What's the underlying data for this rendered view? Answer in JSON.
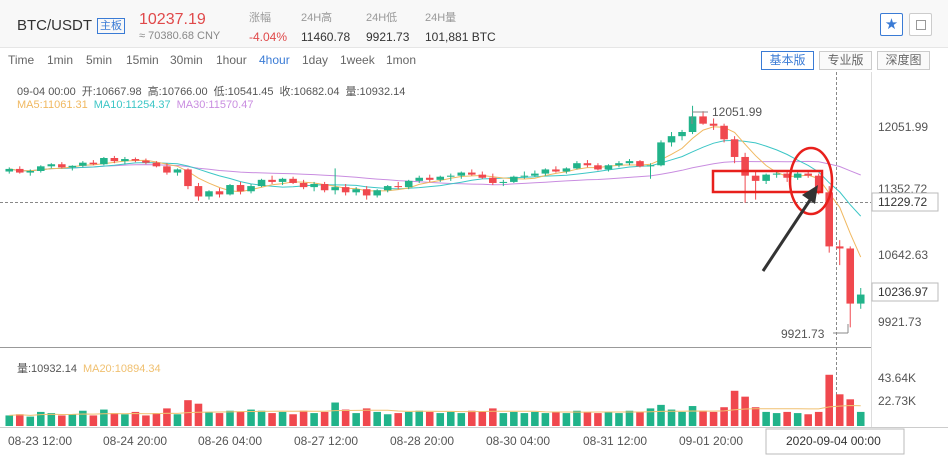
{
  "header": {
    "pair": "BTC/USDT",
    "badge": "主板",
    "price": "10237.19",
    "cny": "≈ 70380.68 CNY",
    "stats": [
      {
        "label": "涨幅",
        "value": "-4.04%",
        "red": true
      },
      {
        "label": "24H高",
        "value": "11460.78",
        "red": false
      },
      {
        "label": "24H低",
        "value": "9921.73",
        "red": false
      },
      {
        "label": "24H量",
        "value": "101,881 BTC",
        "red": false
      }
    ]
  },
  "intervals": [
    "Time",
    "1min",
    "5min",
    "15min",
    "30min",
    "1hour",
    "4hour",
    "1day",
    "1week",
    "1mon"
  ],
  "active_interval": "4hour",
  "modes": [
    {
      "label": "基本版",
      "active": true
    },
    {
      "label": "专业版",
      "active": false
    },
    {
      "label": "深度图",
      "active": false
    }
  ],
  "ohlc_info": {
    "date": "09-04 00:00",
    "open": "开:10667.98",
    "high": "高:10766.00",
    "low": "低:10541.45",
    "close": "收:10682.04",
    "volume": "量:10932.14"
  },
  "ma_info": {
    "ma5": "MA5:11061.31",
    "ma10": "MA10:11254.37",
    "ma30": "MA30:11570.47"
  },
  "vol_info": {
    "vol": "量:10932.14",
    "ma20": "MA20:10894.34"
  },
  "price_axis": [
    "12051.99",
    "11352.72",
    "10642.63",
    "9921.73"
  ],
  "current_price_label": "10236.97",
  "crosshair_price_label": "11229.72",
  "high_marker": "12051.99",
  "low_marker": "9921.73",
  "volume_axis": [
    "43.64K",
    "22.73K"
  ],
  "time_axis": [
    "08-23 12:00",
    "08-24 20:00",
    "08-26 04:00",
    "08-27 12:00",
    "08-28 20:00",
    "08-30 04:00",
    "08-31 12:00",
    "09-01 20:00"
  ],
  "crosshair_time_label": "2020-09-04 00:00",
  "colors": {
    "up": "#21b38a",
    "down": "#f0484e",
    "accent": "#3a7bd5",
    "annotation": "#e8201c"
  },
  "chart_data": {
    "type": "candlestick",
    "candles": [
      [
        11420,
        11460,
        11400,
        11445
      ],
      [
        11445,
        11470,
        11400,
        11410
      ],
      [
        11410,
        11440,
        11380,
        11425
      ],
      [
        11425,
        11480,
        11410,
        11470
      ],
      [
        11470,
        11500,
        11450,
        11490
      ],
      [
        11490,
        11510,
        11450,
        11460
      ],
      [
        11460,
        11480,
        11430,
        11475
      ],
      [
        11475,
        11520,
        11460,
        11505
      ],
      [
        11505,
        11530,
        11480,
        11490
      ],
      [
        11490,
        11560,
        11480,
        11550
      ],
      [
        11550,
        11570,
        11500,
        11520
      ],
      [
        11520,
        11560,
        11490,
        11540
      ],
      [
        11540,
        11555,
        11510,
        11525
      ],
      [
        11525,
        11545,
        11490,
        11505
      ],
      [
        11505,
        11520,
        11460,
        11470
      ],
      [
        11470,
        11500,
        11390,
        11410
      ],
      [
        11410,
        11450,
        11380,
        11440
      ],
      [
        11440,
        11450,
        11250,
        11280
      ],
      [
        11280,
        11310,
        11140,
        11180
      ],
      [
        11180,
        11240,
        11150,
        11230
      ],
      [
        11230,
        11260,
        11170,
        11200
      ],
      [
        11200,
        11300,
        11190,
        11290
      ],
      [
        11290,
        11320,
        11200,
        11230
      ],
      [
        11230,
        11300,
        11210,
        11280
      ],
      [
        11280,
        11350,
        11270,
        11340
      ],
      [
        11340,
        11380,
        11300,
        11320
      ],
      [
        11320,
        11360,
        11290,
        11350
      ],
      [
        11350,
        11370,
        11300,
        11310
      ],
      [
        11310,
        11340,
        11250,
        11270
      ],
      [
        11270,
        11320,
        11230,
        11300
      ],
      [
        11300,
        11320,
        11220,
        11240
      ],
      [
        11240,
        11450,
        11200,
        11270
      ],
      [
        11270,
        11300,
        11190,
        11220
      ],
      [
        11220,
        11270,
        11190,
        11250
      ],
      [
        11250,
        11280,
        11150,
        11190
      ],
      [
        11190,
        11250,
        11170,
        11240
      ],
      [
        11240,
        11290,
        11220,
        11280
      ],
      [
        11280,
        11320,
        11250,
        11270
      ],
      [
        11270,
        11340,
        11250,
        11330
      ],
      [
        11330,
        11380,
        11310,
        11360
      ],
      [
        11360,
        11390,
        11320,
        11340
      ],
      [
        11340,
        11380,
        11320,
        11370
      ],
      [
        11370,
        11400,
        11330,
        11380
      ],
      [
        11380,
        11420,
        11350,
        11410
      ],
      [
        11410,
        11440,
        11380,
        11390
      ],
      [
        11390,
        11420,
        11350,
        11360
      ],
      [
        11360,
        11400,
        11290,
        11310
      ],
      [
        11310,
        11340,
        11280,
        11320
      ],
      [
        11320,
        11380,
        11310,
        11370
      ],
      [
        11370,
        11420,
        11350,
        11380
      ],
      [
        11380,
        11430,
        11370,
        11400
      ],
      [
        11400,
        11450,
        11380,
        11440
      ],
      [
        11440,
        11470,
        11410,
        11420
      ],
      [
        11420,
        11460,
        11400,
        11450
      ],
      [
        11450,
        11520,
        11440,
        11500
      ],
      [
        11500,
        11530,
        11460,
        11480
      ],
      [
        11480,
        11500,
        11430,
        11440
      ],
      [
        11440,
        11490,
        11420,
        11480
      ],
      [
        11480,
        11520,
        11460,
        11500
      ],
      [
        11500,
        11540,
        11480,
        11520
      ],
      [
        11520,
        11530,
        11460,
        11470
      ],
      [
        11470,
        11500,
        11350,
        11480
      ],
      [
        11480,
        11720,
        11470,
        11700
      ],
      [
        11700,
        11800,
        11660,
        11760
      ],
      [
        11760,
        11820,
        11720,
        11800
      ],
      [
        11800,
        12051.99,
        11780,
        11950
      ],
      [
        11950,
        12000,
        11870,
        11880
      ],
      [
        11880,
        11930,
        11820,
        11860
      ],
      [
        11860,
        11880,
        11700,
        11730
      ],
      [
        11730,
        11760,
        11500,
        11560
      ],
      [
        11560,
        11600,
        11120,
        11380
      ],
      [
        11380,
        11420,
        11150,
        11330
      ],
      [
        11330,
        11400,
        11300,
        11390
      ],
      [
        11390,
        11430,
        11360,
        11400
      ],
      [
        11400,
        11420,
        11320,
        11360
      ],
      [
        11360,
        11420,
        11340,
        11400
      ],
      [
        11400,
        11420,
        11360,
        11380
      ],
      [
        11380,
        11400,
        11200,
        11220
      ],
      [
        11220,
        11280,
        10640,
        10700
      ],
      [
        10700,
        10760,
        10520,
        10680
      ],
      [
        10680,
        10700,
        9921.73,
        10150
      ],
      [
        10150,
        10300,
        10100,
        10236.97
      ]
    ],
    "volume": [
      9,
      10,
      8,
      12,
      11,
      9,
      10,
      13,
      9,
      14,
      11,
      10,
      12,
      9,
      11,
      15,
      10,
      22,
      19,
      12,
      11,
      13,
      12,
      14,
      13,
      11,
      12,
      10,
      13,
      11,
      12,
      20,
      14,
      11,
      15,
      12,
      10,
      11,
      12,
      13,
      12,
      11,
      12,
      11,
      13,
      12,
      15,
      11,
      12,
      11,
      12,
      11,
      12,
      11,
      13,
      12,
      11,
      12,
      11,
      13,
      12,
      15,
      18,
      14,
      12,
      17,
      13,
      12,
      16,
      30,
      25,
      16,
      12,
      11,
      12,
      11,
      10,
      12,
      43.64,
      27,
      22.73,
      12
    ],
    "ma5": [],
    "ma10": [],
    "ma30": [],
    "price_min": 9800,
    "price_max": 12300,
    "volume_max": 46
  }
}
